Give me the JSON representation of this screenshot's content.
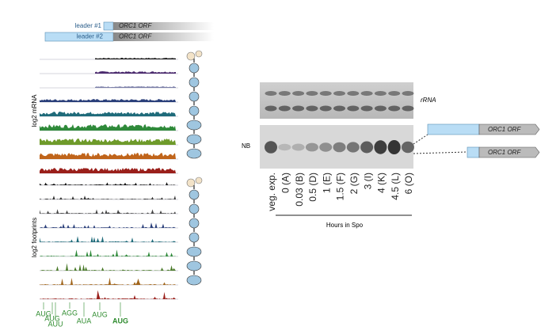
{
  "schematic": {
    "leader_1": "leader #1",
    "orf_1": "ORC1 ORF",
    "leader_2": "leader #2",
    "orf_2": "ORC1 ORF"
  },
  "tracks": {
    "mrna_label": "log2 mRNA",
    "footprints_label": "log2 footprints"
  },
  "codons": [
    "AUG",
    "AUU",
    "AUG",
    "AGG",
    "AUA",
    "AUG",
    "AUG"
  ],
  "blot": {
    "rrna_label": "rRNA",
    "nb_label": "NB",
    "lanes": [
      "veg. exp.",
      "0 (A)",
      "0.03 (B)",
      "0.5 (D)",
      "1 (E)",
      "1.5 (F)",
      "2 (G)",
      "3 (I)",
      "4 (K)",
      "4.5 (L)",
      "6 (O)"
    ],
    "axis_label": "Hours in Spo"
  },
  "transcripts": {
    "long_orf": "ORC1 ORF",
    "short_orf": "ORC1 ORF"
  }
}
